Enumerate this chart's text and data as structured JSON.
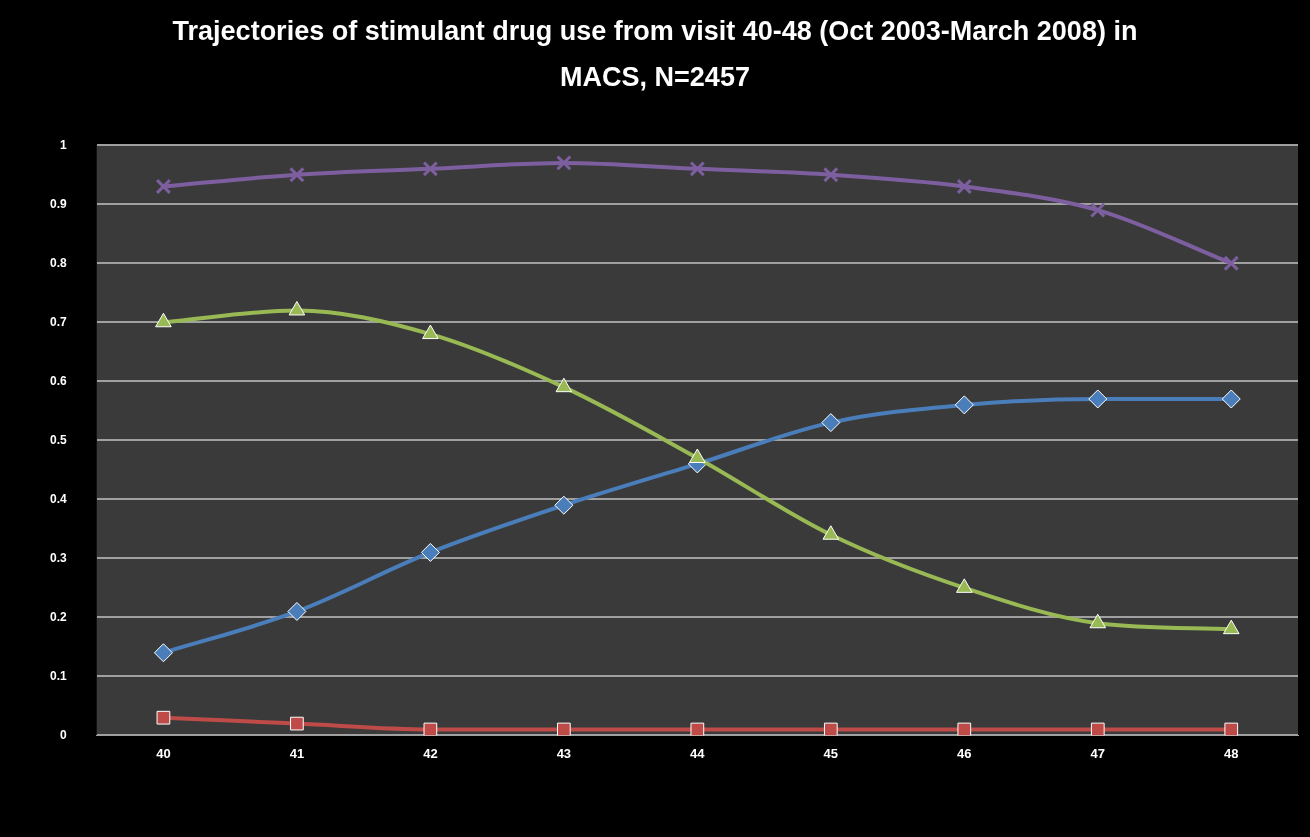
{
  "chart_data": {
    "type": "line",
    "title": "Trajectories of stimulant drug use from visit 40-48 (Oct 2003-March 2008) in MACS, N=2457",
    "categories": [
      "40",
      "41",
      "42",
      "43",
      "44",
      "45",
      "46",
      "47",
      "48"
    ],
    "series": [
      {
        "color": "#4a7ebb",
        "marker": "diamond",
        "values": [
          0.14,
          0.21,
          0.31,
          0.39,
          0.46,
          0.53,
          0.56,
          0.57,
          0.57
        ]
      },
      {
        "color": "#be4b48",
        "marker": "square",
        "values": [
          0.03,
          0.02,
          0.01,
          0.01,
          0.01,
          0.01,
          0.01,
          0.01,
          0.01
        ]
      },
      {
        "color": "#98b954",
        "marker": "triangle",
        "values": [
          0.7,
          0.72,
          0.68,
          0.59,
          0.47,
          0.34,
          0.25,
          0.19,
          0.18
        ]
      },
      {
        "color": "#7d5fa0",
        "marker": "cross",
        "values": [
          0.93,
          0.95,
          0.96,
          0.97,
          0.96,
          0.95,
          0.93,
          0.89,
          0.8
        ]
      }
    ],
    "ylim": [
      0,
      1
    ],
    "yticks": [
      0,
      0.1,
      0.2,
      0.3,
      0.4,
      0.5,
      0.6,
      0.7,
      0.8,
      0.9,
      1
    ],
    "grid": "y",
    "legend": false
  }
}
